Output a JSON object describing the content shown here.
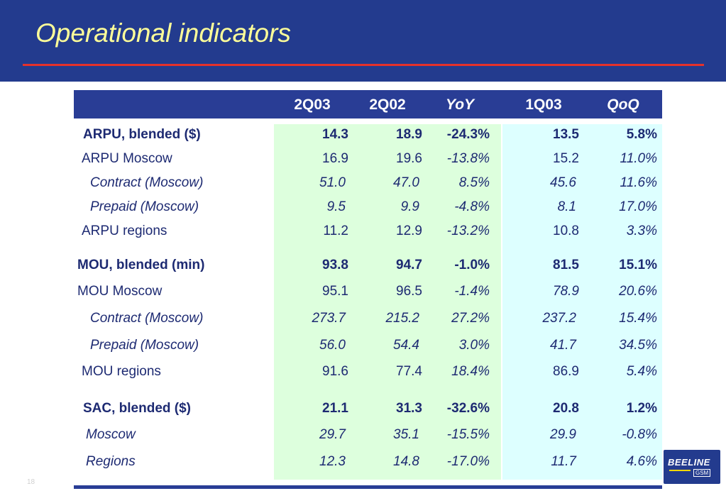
{
  "slide": {
    "title": "Operational indicators",
    "page_number": "18",
    "logo_text": "BEELINE",
    "logo_sub": "GSM"
  },
  "table": {
    "headers": [
      "2Q03",
      "2Q02",
      "YoY",
      "1Q03",
      "QoQ"
    ],
    "rows": [
      {
        "label": "ARPU, blended ($)",
        "values": [
          "14.3",
          "18.9",
          "-24.3%",
          "13.5",
          "5.8%"
        ]
      },
      {
        "label": "ARPU Moscow",
        "values": [
          "16.9",
          "19.6",
          "-13.8%",
          "15.2",
          "11.0%"
        ]
      },
      {
        "label": "Contract (Moscow)",
        "values": [
          "51.0",
          "47.0",
          "8.5%",
          "45.6",
          "11.6%"
        ]
      },
      {
        "label": "Prepaid (Moscow)",
        "values": [
          "9.5",
          "9.9",
          "-4.8%",
          "8.1",
          "17.0%"
        ]
      },
      {
        "label": "ARPU regions",
        "values": [
          "11.2",
          "12.9",
          "-13.2%",
          "10.8",
          "3.3%"
        ]
      },
      {
        "label": "MOU, blended (min)",
        "values": [
          "93.8",
          "94.7",
          "-1.0%",
          "81.5",
          "15.1%"
        ]
      },
      {
        "label": "MOU Moscow",
        "values": [
          "95.1",
          "96.5",
          "-1.4%",
          "78.9",
          "20.6%"
        ]
      },
      {
        "label": "Contract (Moscow)",
        "values": [
          "273.7",
          "215.2",
          "27.2%",
          "237.2",
          "15.4%"
        ]
      },
      {
        "label": "Prepaid (Moscow)",
        "values": [
          "56.0",
          "54.4",
          "3.0%",
          "41.7",
          "34.5%"
        ]
      },
      {
        "label": "MOU regions",
        "values": [
          "91.6",
          "77.4",
          "18.4%",
          "86.9",
          "5.4%"
        ]
      },
      {
        "label": "SAC, blended ($)",
        "values": [
          "21.1",
          "31.3",
          "-32.6%",
          "20.8",
          "1.2%"
        ]
      },
      {
        "label": "Moscow",
        "values": [
          "29.7",
          "35.1",
          "-15.5%",
          "29.9",
          "-0.8%"
        ]
      },
      {
        "label": "Regions",
        "values": [
          "12.3",
          "14.8",
          "-17.0%",
          "11.7",
          "4.6%"
        ]
      }
    ]
  },
  "colors": {
    "header_bg": "#233b8e",
    "title_text": "#ffff99",
    "accent_line": "#e5312b",
    "green_column": "#ddffdd",
    "cyan_column": "#ddffff",
    "body_text": "#1d2a72"
  }
}
